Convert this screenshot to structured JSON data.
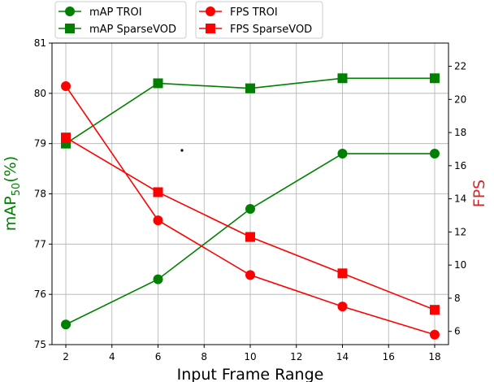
{
  "chart_data": {
    "type": "line",
    "xlabel": "Input Frame Range",
    "ylabel_left": {
      "base": "mAP",
      "subscript": "50",
      "suffix": "(%)"
    },
    "ylabel_right": "FPS",
    "xlim": [
      1.4,
      18.6
    ],
    "ylim_left": [
      75,
      81
    ],
    "ylim_right": [
      5.2,
      23.4
    ],
    "x_ticks": [
      2,
      4,
      6,
      8,
      10,
      12,
      14,
      16,
      18
    ],
    "y_ticks_left": [
      75,
      76,
      77,
      78,
      79,
      80,
      81
    ],
    "y_ticks_right": [
      6,
      8,
      10,
      12,
      14,
      16,
      18,
      20,
      22
    ],
    "grid": true,
    "legend_left_placement": "above-plot-left",
    "legend_right_placement": "above-plot-right",
    "series": [
      {
        "name": "mAP TROI",
        "axis": "left",
        "marker": "circle",
        "color": "#008000",
        "x": [
          2,
          6,
          10,
          14,
          18
        ],
        "y": [
          75.4,
          76.3,
          77.7,
          78.8,
          78.8
        ]
      },
      {
        "name": "mAP SparseVOD",
        "axis": "left",
        "marker": "square",
        "color": "#008000",
        "x": [
          2,
          6,
          10,
          14,
          18
        ],
        "y": [
          79.0,
          80.2,
          80.1,
          80.3,
          80.3
        ]
      },
      {
        "name": "FPS TROI",
        "axis": "right",
        "marker": "circle",
        "color": "#ff0000",
        "x": [
          2,
          6,
          10,
          14,
          18
        ],
        "y": [
          20.8,
          12.7,
          9.4,
          7.5,
          5.8
        ]
      },
      {
        "name": "FPS SparseVOD",
        "axis": "right",
        "marker": "square",
        "color": "#ff0000",
        "x": [
          2,
          6,
          10,
          14,
          18
        ],
        "y": [
          17.7,
          14.4,
          11.7,
          9.5,
          7.3
        ]
      }
    ],
    "colors": {
      "left_axis_label": "#008000",
      "right_axis_label": "#d62728",
      "grid": "#b0b0b0"
    }
  }
}
